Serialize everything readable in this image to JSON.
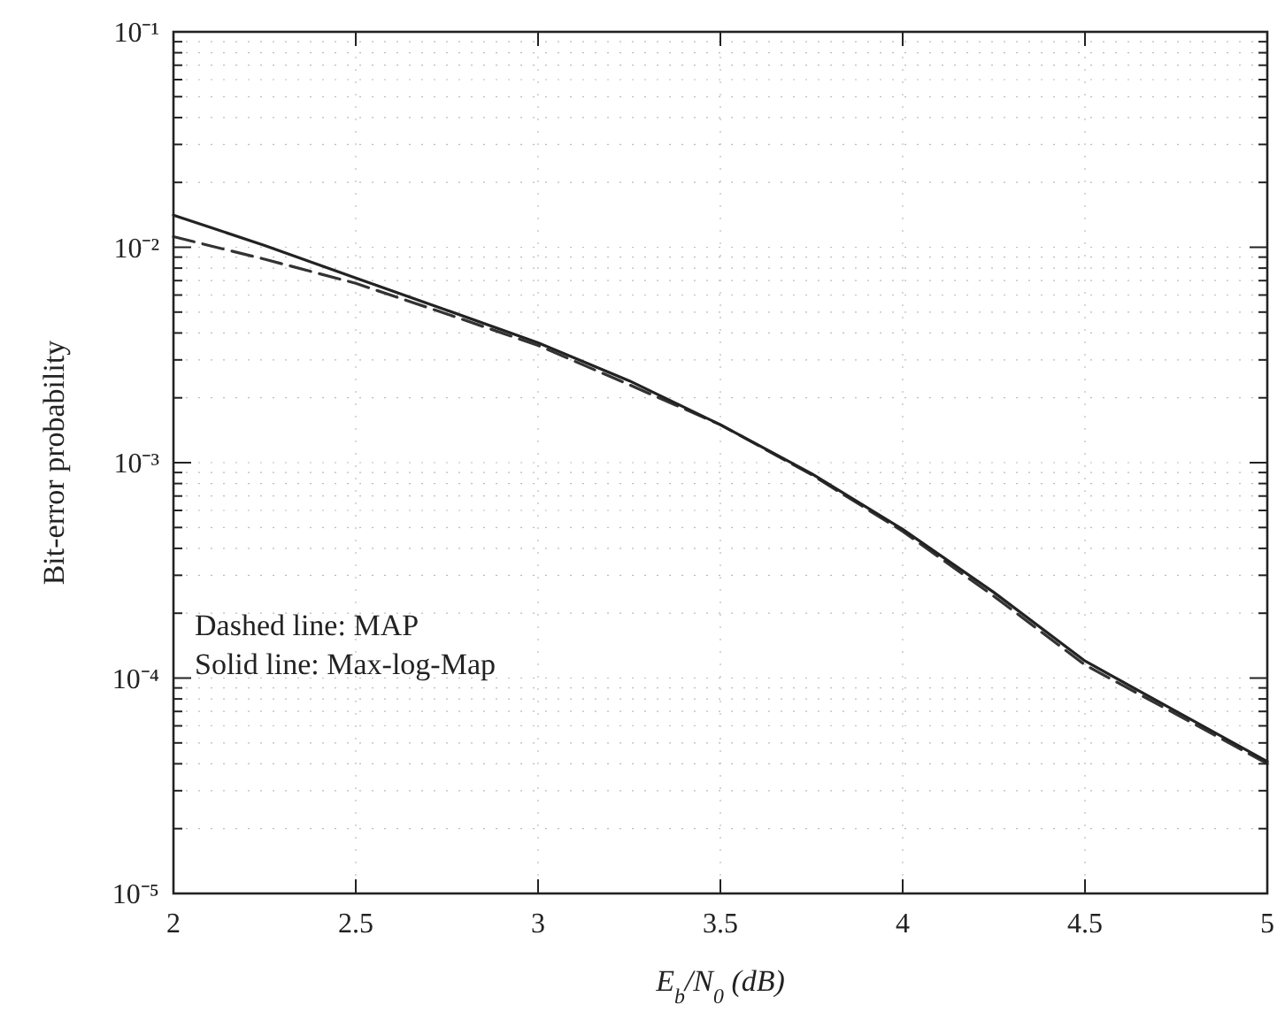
{
  "chart_data": {
    "type": "line",
    "xlabel": "E$_{b}$/N$_{0}$ (dB)",
    "ylabel": "Bit-error probability",
    "log": "y",
    "grid": true,
    "marker": "none",
    "xlim": [
      2,
      5
    ],
    "xticks": [
      2,
      2.5,
      3,
      3.5,
      4,
      4.5,
      5
    ],
    "ylim": [
      1e-05,
      0.1
    ],
    "yticks": [
      {
        "value": 1e-05,
        "label": "10⁻⁵"
      },
      {
        "value": 2e-05,
        "label": null
      },
      {
        "value": 3e-05,
        "label": null
      },
      {
        "value": 4e-05,
        "label": null
      },
      {
        "value": 5e-05,
        "label": null
      },
      {
        "value": 6e-05,
        "label": null
      },
      {
        "value": 7e-05,
        "label": null
      },
      {
        "value": 8e-05,
        "label": null
      },
      {
        "value": 9e-05,
        "label": null
      },
      {
        "value": 0.0001,
        "label": "10⁻⁴"
      },
      {
        "value": 0.0002,
        "label": null
      },
      {
        "value": 0.0003,
        "label": null
      },
      {
        "value": 0.0004,
        "label": null
      },
      {
        "value": 0.0005,
        "label": null
      },
      {
        "value": 0.0006,
        "label": null
      },
      {
        "value": 0.0007,
        "label": null
      },
      {
        "value": 0.0008,
        "label": null
      },
      {
        "value": 0.0009,
        "label": null
      },
      {
        "value": 0.001,
        "label": "10⁻³"
      },
      {
        "value": 0.002,
        "label": null
      },
      {
        "value": 0.003,
        "label": null
      },
      {
        "value": 0.004,
        "label": null
      },
      {
        "value": 0.005,
        "label": null
      },
      {
        "value": 0.006,
        "label": null
      },
      {
        "value": 0.007,
        "label": null
      },
      {
        "value": 0.008,
        "label": null
      },
      {
        "value": 0.009,
        "label": null
      },
      {
        "value": 0.01,
        "label": "10⁻²"
      },
      {
        "value": 0.02,
        "label": null
      },
      {
        "value": 0.03,
        "label": null
      },
      {
        "value": 0.04,
        "label": null
      },
      {
        "value": 0.05,
        "label": null
      },
      {
        "value": 0.06,
        "label": null
      },
      {
        "value": 0.07,
        "label": null
      },
      {
        "value": 0.08,
        "label": null
      },
      {
        "value": 0.09,
        "label": null
      },
      {
        "value": 0.1,
        "label": "10⁻¹"
      }
    ],
    "x": [
      2,
      2.25,
      2.5,
      2.75,
      3,
      3.25,
      3.5,
      3.75,
      4,
      4.25,
      4.5,
      4.75,
      5
    ],
    "series": [
      {
        "color": "#333333",
        "line_style": "dashed",
        "values": [
          0.0112,
          0.0088,
          0.0068,
          0.0049,
          0.0035,
          0.0023,
          0.0015,
          0.00088,
          0.00048,
          0.00024,
          0.000115,
          6.8e-05,
          4e-05
        ]
      },
      {
        "color": "#222222",
        "line_style": "solid",
        "values": [
          0.0141,
          0.0102,
          0.0072,
          0.0051,
          0.0036,
          0.0024,
          0.0015,
          0.00089,
          0.00049,
          0.00025,
          0.00012,
          7e-05,
          4.1e-05
        ]
      }
    ],
    "annotations": [
      "Dashed line: MAP",
      "Solid line: Max-log-Map"
    ]
  }
}
